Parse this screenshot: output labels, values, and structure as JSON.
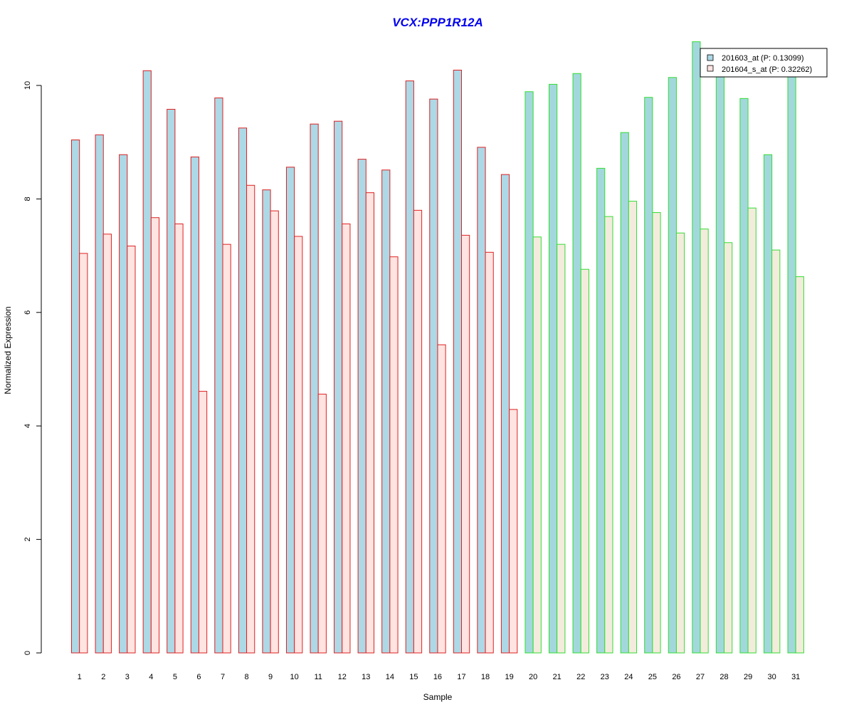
{
  "chart_data": {
    "type": "bar",
    "title": "VCX:PPP1R12A",
    "xlabel": "Sample",
    "ylabel": "Normalized Expression",
    "ylim": [
      0,
      10.8
    ],
    "yticks": [
      0,
      2,
      4,
      6,
      8,
      10
    ],
    "categories": [
      "1",
      "2",
      "3",
      "4",
      "5",
      "6",
      "7",
      "8",
      "9",
      "10",
      "11",
      "12",
      "13",
      "14",
      "15",
      "16",
      "17",
      "18",
      "19",
      "20",
      "21",
      "22",
      "23",
      "24",
      "25",
      "26",
      "27",
      "28",
      "29",
      "30",
      "31"
    ],
    "group_border_colors": {
      "red_samples": [
        "1",
        "2",
        "3",
        "4",
        "5",
        "6",
        "7",
        "8",
        "9",
        "10",
        "11",
        "12",
        "13",
        "14",
        "15",
        "16",
        "17",
        "18",
        "19"
      ],
      "green_samples": [
        "20",
        "21",
        "22",
        "23",
        "24",
        "25",
        "26",
        "27",
        "28",
        "29",
        "30",
        "31"
      ],
      "red": "#dd2222",
      "green": "#33dd33"
    },
    "series": [
      {
        "name": "201603_at (P: 0.13099)",
        "fill_red_group": "#add8e6",
        "fill_green_group": "#a2d8dc",
        "values": [
          9.04,
          9.13,
          8.78,
          10.26,
          9.58,
          8.74,
          9.78,
          9.25,
          8.16,
          8.56,
          9.32,
          9.37,
          8.7,
          8.51,
          10.08,
          9.76,
          10.27,
          8.91,
          8.43,
          9.89,
          10.02,
          10.21,
          8.54,
          9.17,
          9.79,
          10.14,
          10.77,
          10.25,
          9.77,
          8.78,
          10.3
        ]
      },
      {
        "name": "201604_s_at (P: 0.32262)",
        "fill_red_group": "#ffe4e1",
        "fill_green_group": "#f3ecdc",
        "values": [
          7.04,
          7.38,
          7.17,
          7.67,
          7.56,
          4.61,
          7.2,
          8.24,
          7.79,
          7.34,
          4.56,
          7.56,
          8.11,
          6.98,
          7.8,
          5.43,
          7.36,
          7.06,
          4.29,
          7.33,
          7.2,
          6.76,
          7.69,
          7.96,
          7.76,
          7.4,
          7.47,
          7.23,
          7.84,
          7.1,
          6.63
        ]
      }
    ],
    "legend_position": "top-right",
    "title_color": "#0000ee",
    "grid": false
  }
}
